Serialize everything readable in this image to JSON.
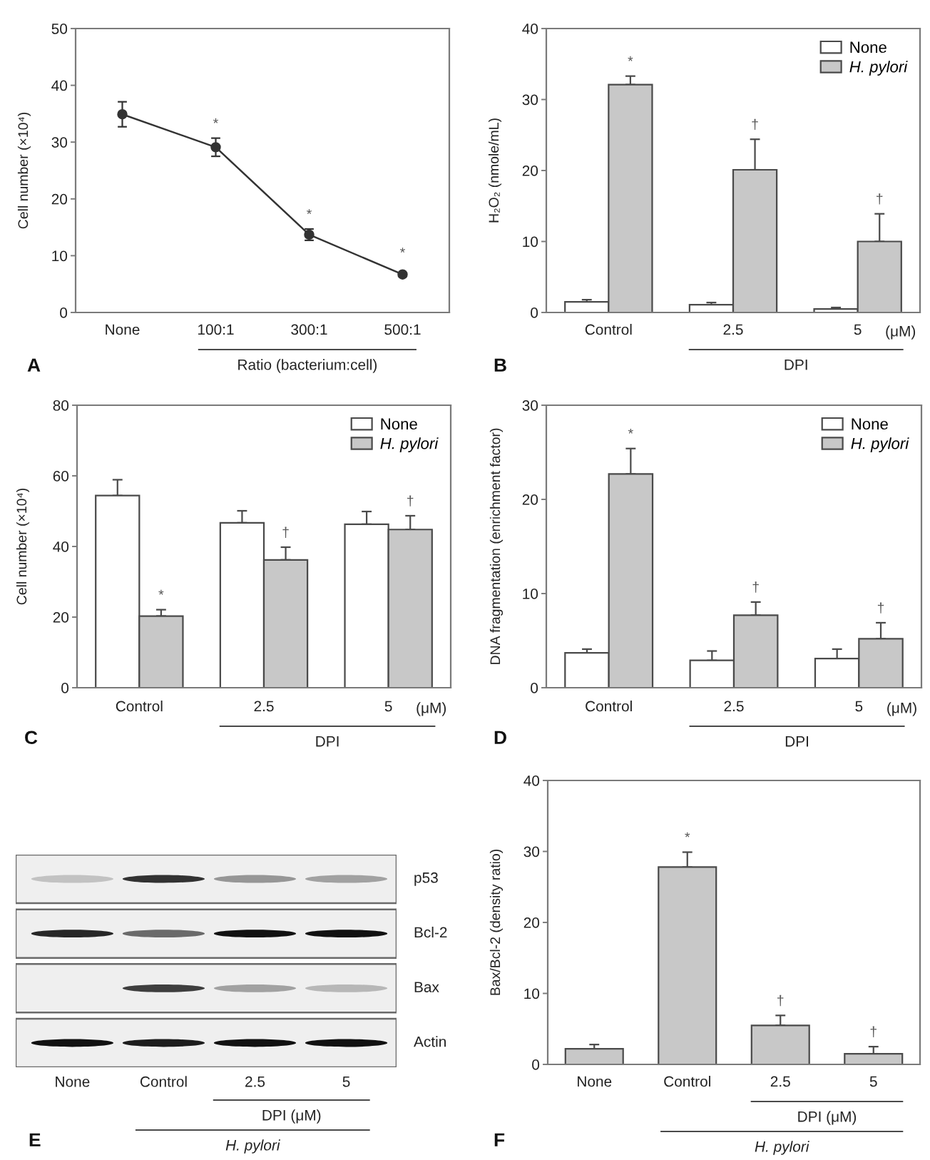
{
  "chart_data": [
    {
      "type": "line",
      "title": "A",
      "ylabel": "Cell number (×10⁴)",
      "xlabel": "Ratio (bacterium:cell)",
      "categories": [
        "None",
        "100:1",
        "300:1",
        "500:1"
      ],
      "values": [
        34.9,
        29.1,
        13.7,
        6.7
      ],
      "errors": [
        2.2,
        1.6,
        1.0,
        null
      ],
      "color": "#333333",
      "marker": "circle",
      "ylim": [
        0,
        50
      ],
      "yticks": [
        0,
        10,
        20,
        30,
        40,
        50
      ],
      "annotations": [
        "*",
        "*",
        "*"
      ]
    },
    {
      "type": "bar",
      "title": "B",
      "ylabel": "H₂O₂ (nmole/mL)",
      "xlabel": "DPI",
      "categories": [
        "Control",
        "2.5",
        "5"
      ],
      "series": [
        {
          "name": "None",
          "color": "#ffffff",
          "values": [
            1.5,
            1.1,
            0.5
          ],
          "errors": [
            [
              1.5,
              1.8
            ],
            [
              1.1,
              1.4
            ],
            [
              0.5,
              0.7
            ]
          ]
        },
        {
          "name": "H. pylori",
          "color": "#c8c8c8",
          "values": [
            32.1,
            20.1,
            10.0
          ],
          "errors": [
            [
              32.1,
              33.3
            ],
            [
              20.1,
              24.4
            ],
            [
              10.0,
              13.9
            ]
          ]
        }
      ],
      "ylim": [
        0,
        40
      ],
      "yticks": [
        0,
        10,
        20,
        30,
        40
      ],
      "legend": "top right",
      "annotations": [
        "(μM)",
        "*",
        "†",
        "†"
      ]
    },
    {
      "type": "bar",
      "title": "C",
      "ylabel": "Cell number (×10⁴)",
      "xlabel": "DPI",
      "categories": [
        "Control",
        "2.5",
        "5"
      ],
      "series": [
        {
          "name": "None",
          "color": "#ffffff",
          "values": [
            54.4,
            46.7,
            46.3
          ],
          "errors": [
            [
              54.4,
              58.9
            ],
            [
              46.7,
              50.1
            ],
            [
              46.3,
              49.9
            ]
          ]
        },
        {
          "name": "H. pylori",
          "color": "#c8c8c8",
          "values": [
            20.3,
            36.2,
            44.8
          ],
          "errors": [
            [
              20.3,
              22.1
            ],
            [
              36.2,
              39.8
            ],
            [
              44.8,
              48.7
            ]
          ]
        }
      ],
      "ylim": [
        0,
        80
      ],
      "yticks": [
        0,
        20,
        40,
        60,
        80
      ],
      "legend": "top right",
      "annotations": [
        "(μM)",
        "*",
        "†",
        "†"
      ]
    },
    {
      "type": "bar",
      "title": "D",
      "ylabel": "DNA fragmentation (enrichment factor)",
      "xlabel": "DPI",
      "categories": [
        "Control",
        "2.5",
        "5"
      ],
      "series": [
        {
          "name": "None",
          "color": "#ffffff",
          "values": [
            3.7,
            2.9,
            3.1
          ],
          "errors": [
            [
              3.7,
              4.1
            ],
            [
              2.9,
              3.9
            ],
            [
              3.1,
              4.1
            ]
          ]
        },
        {
          "name": "H. pylori",
          "color": "#c8c8c8",
          "values": [
            22.7,
            7.7,
            5.2
          ],
          "errors": [
            [
              22.7,
              25.4
            ],
            [
              7.7,
              9.1
            ],
            [
              5.2,
              6.9
            ]
          ]
        }
      ],
      "ylim": [
        0,
        30
      ],
      "yticks": [
        0,
        10,
        20,
        30
      ],
      "legend": "top right",
      "annotations": [
        "(μM)",
        "*",
        "†",
        "†"
      ]
    },
    {
      "type": "other",
      "title": "E",
      "categories": [
        "None",
        "Control",
        "2.5",
        "5"
      ],
      "y2_categories": [
        "p53",
        "Bcl-2",
        "Bax",
        "Actin"
      ],
      "xlabel": "H. pylori",
      "annotations": [
        "DPI (μM)"
      ]
    },
    {
      "type": "bar",
      "title": "F",
      "ylabel": "Bax/Bcl-2 (density ratio)",
      "xlabel": "H. pylori",
      "categories": [
        "None",
        "Control",
        "2.5",
        "5"
      ],
      "values": [
        2.2,
        27.8,
        5.5,
        1.5
      ],
      "errors": [
        [
          2.2,
          2.8
        ],
        [
          27.8,
          29.9
        ],
        [
          5.5,
          6.9
        ],
        [
          1.5,
          2.5
        ]
      ],
      "color": "#c8c8c8",
      "ylim": [
        0,
        40
      ],
      "yticks": [
        0,
        10,
        20,
        30,
        40
      ],
      "annotations": [
        "DPI (μM)",
        "*",
        "†",
        "†"
      ]
    }
  ]
}
